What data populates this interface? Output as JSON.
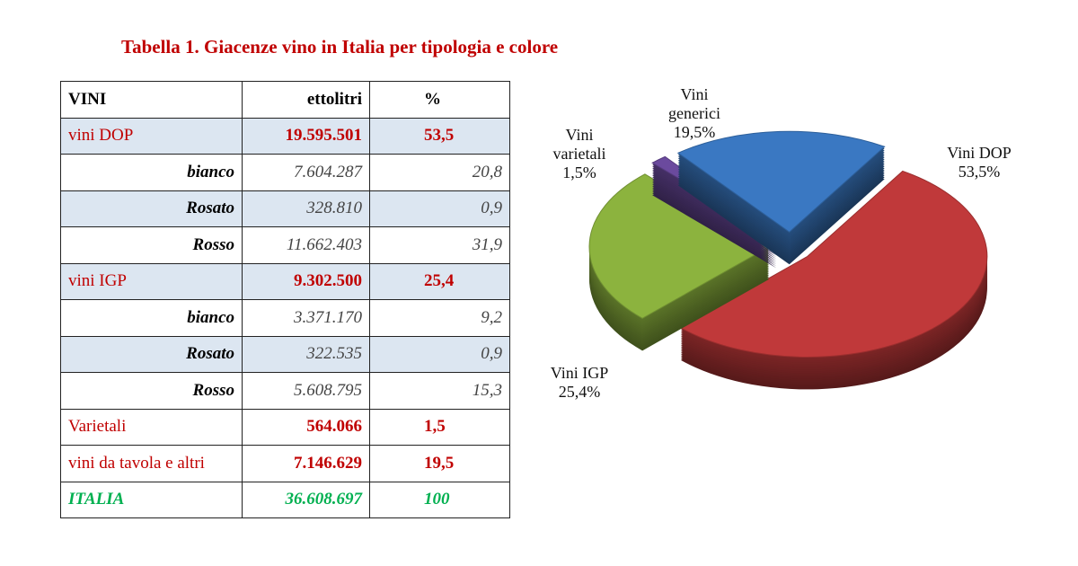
{
  "title": "Tabella 1. Giacenze vino in Italia per tipologia e colore",
  "table": {
    "header": [
      "VINI",
      "ettolitri",
      "%"
    ],
    "rows": [
      [
        "vini DOP",
        "19.595.501",
        "53,5"
      ],
      [
        "bianco",
        "7.604.287",
        "20,8"
      ],
      [
        "Rosato",
        "328.810",
        "0,9"
      ],
      [
        "Rosso",
        "11.662.403",
        "31,9"
      ],
      [
        "vini IGP",
        "9.302.500",
        "25,4"
      ],
      [
        "bianco",
        "3.371.170",
        "9,2"
      ],
      [
        "Rosato",
        "322.535",
        "0,9"
      ],
      [
        "Rosso",
        "5.608.795",
        "15,3"
      ],
      [
        "Varietali",
        "564.066",
        "1,5"
      ],
      [
        "vini da tavola e altri",
        "7.146.629",
        "19,5"
      ],
      [
        "ITALIA",
        "36.608.697",
        "100"
      ]
    ]
  },
  "chart_data": {
    "type": "pie",
    "categories": [
      "Vini DOP",
      "Vini IGP",
      "Vini varietali",
      "Vini generici"
    ],
    "values": [
      53.5,
      25.4,
      1.5,
      19.5
    ],
    "value_labels": [
      "53,5%",
      "25,4%",
      "1,5%",
      "19,5%"
    ],
    "colors": [
      "#c0393a",
      "#8cb33e",
      "#6b4a9e",
      "#3a78c2"
    ]
  }
}
